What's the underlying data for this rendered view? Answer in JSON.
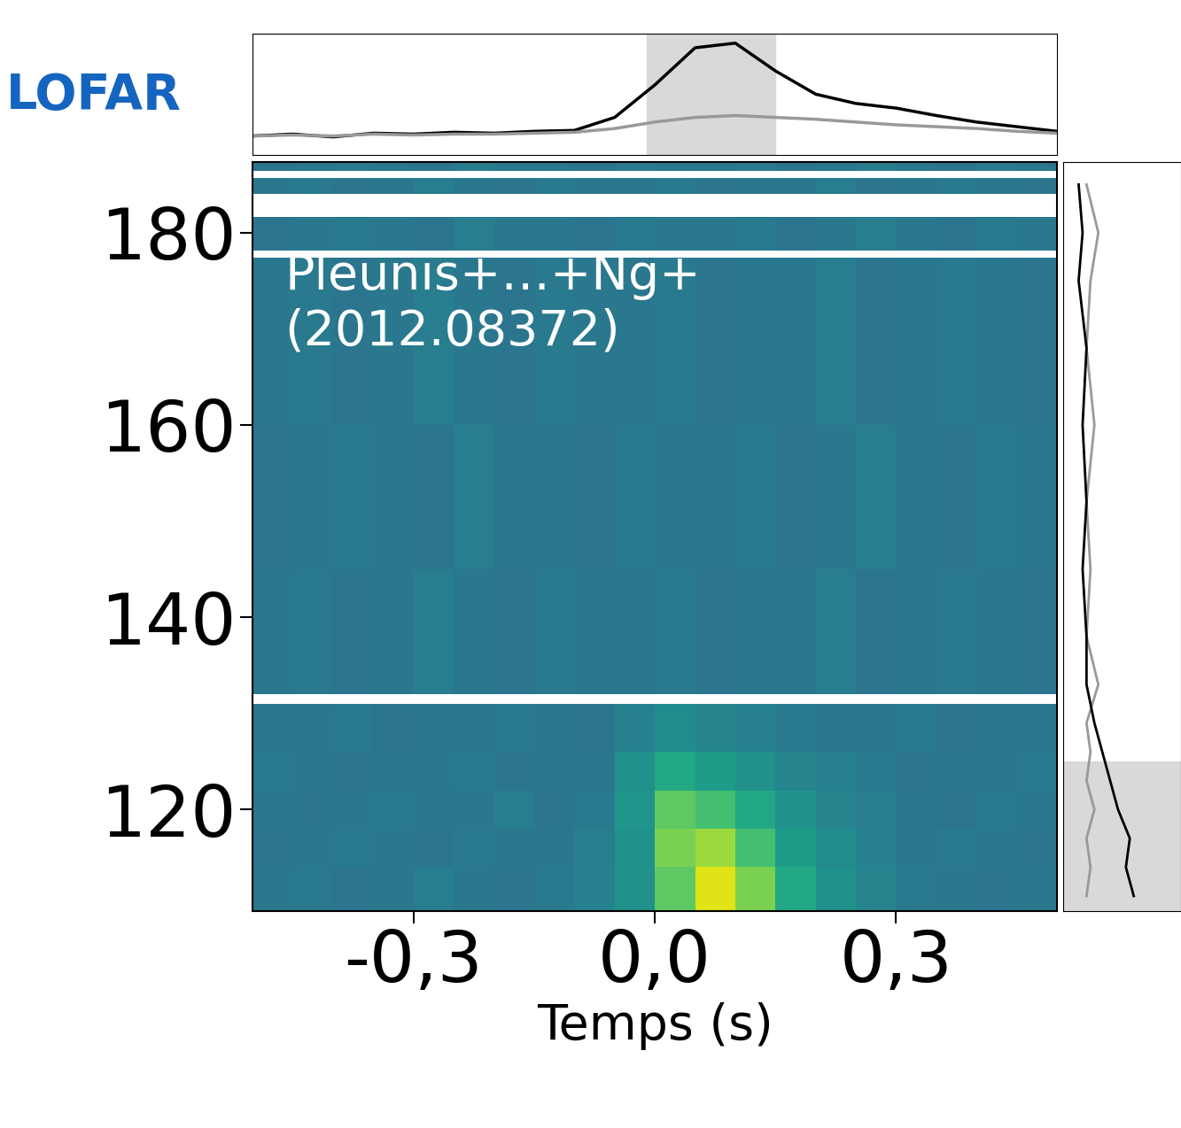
{
  "chart_data": [
    {
      "type": "heatmap",
      "title": "LOFAR",
      "x_label": "Temps (s)",
      "annotations": [
        "Pleunis+…+Ng+\n(2012.08372)"
      ],
      "xlim": [
        -0.5,
        0.5
      ],
      "ylim": [
        109.4,
        187.3
      ],
      "xticks": [
        {
          "value": -0.3,
          "label": "-0,3"
        },
        {
          "value": 0.0,
          "label": "0,0"
        },
        {
          "value": 0.3,
          "label": "0,3"
        }
      ],
      "yticks": [
        120,
        140,
        160,
        180
      ],
      "time_edges": [
        -0.5,
        -0.45,
        -0.4,
        -0.35,
        -0.3,
        -0.25,
        -0.2,
        -0.15,
        -0.1,
        -0.05,
        0.0,
        0.05,
        0.1,
        0.15,
        0.2,
        0.25,
        0.3,
        0.35,
        0.4,
        0.45,
        0.5
      ],
      "freq_edges": [
        109.4,
        114,
        118,
        122,
        126,
        131,
        132,
        145,
        160,
        177.4,
        178.1,
        181.6,
        184,
        185.7,
        186.4,
        187.3
      ],
      "zlim": [
        -0.1,
        0.9
      ],
      "cells": [
        [
          0.3,
          0.31,
          0.29,
          0.3,
          0.32,
          0.3,
          0.29,
          0.31,
          0.33,
          0.4,
          0.65,
          0.85,
          0.7,
          0.5,
          0.4,
          0.35,
          0.31,
          0.3,
          0.29,
          0.3
        ],
        [
          0.29,
          0.3,
          0.31,
          0.3,
          0.29,
          0.31,
          0.3,
          0.3,
          0.32,
          0.4,
          0.7,
          0.75,
          0.6,
          0.45,
          0.38,
          0.33,
          0.3,
          0.31,
          0.3,
          0.29
        ],
        [
          0.3,
          0.29,
          0.3,
          0.31,
          0.3,
          0.3,
          0.32,
          0.29,
          0.31,
          0.42,
          0.65,
          0.6,
          0.5,
          0.4,
          0.35,
          0.32,
          0.3,
          0.29,
          0.31,
          0.3
        ],
        [
          0.31,
          0.3,
          0.29,
          0.3,
          0.3,
          0.31,
          0.29,
          0.3,
          0.3,
          0.4,
          0.5,
          0.45,
          0.4,
          0.35,
          0.33,
          0.31,
          0.29,
          0.3,
          0.3,
          0.31
        ],
        [
          0.3,
          0.3,
          0.31,
          0.29,
          0.3,
          0.3,
          0.31,
          0.3,
          0.29,
          0.33,
          0.38,
          0.35,
          0.33,
          0.31,
          0.3,
          0.3,
          0.31,
          0.29,
          0.3,
          0.3
        ],
        [
          null,
          null,
          null,
          null,
          null,
          null,
          null,
          null,
          null,
          null,
          null,
          null,
          null,
          null,
          null,
          null,
          null,
          null,
          null,
          null
        ],
        [
          0.3,
          0.31,
          0.29,
          0.3,
          0.32,
          0.3,
          0.29,
          0.31,
          0.3,
          0.3,
          0.31,
          0.29,
          0.3,
          0.3,
          0.32,
          0.29,
          0.3,
          0.31,
          0.3,
          0.29
        ],
        [
          0.29,
          0.3,
          0.31,
          0.3,
          0.29,
          0.32,
          0.3,
          0.3,
          0.29,
          0.31,
          0.3,
          0.3,
          0.31,
          0.29,
          0.3,
          0.32,
          0.3,
          0.29,
          0.31,
          0.3
        ],
        [
          0.3,
          0.31,
          0.29,
          0.3,
          0.32,
          0.3,
          0.29,
          0.31,
          0.3,
          0.3,
          0.31,
          0.29,
          0.3,
          0.3,
          0.32,
          0.29,
          0.3,
          0.31,
          0.3,
          0.29
        ],
        [
          null,
          null,
          null,
          null,
          null,
          null,
          null,
          null,
          null,
          null,
          null,
          null,
          null,
          null,
          null,
          null,
          null,
          null,
          null,
          null
        ],
        [
          0.29,
          0.3,
          0.31,
          0.3,
          0.29,
          0.32,
          0.3,
          0.3,
          0.29,
          0.31,
          0.3,
          0.3,
          0.31,
          0.29,
          0.3,
          0.32,
          0.3,
          0.29,
          0.31,
          0.3
        ],
        [
          null,
          null,
          null,
          null,
          null,
          null,
          null,
          null,
          null,
          null,
          null,
          null,
          null,
          null,
          null,
          null,
          null,
          null,
          null,
          null
        ],
        [
          0.3,
          0.31,
          0.29,
          0.3,
          0.32,
          0.3,
          0.29,
          0.31,
          0.3,
          0.3,
          0.31,
          0.29,
          0.3,
          0.3,
          0.32,
          0.29,
          0.3,
          0.31,
          0.3,
          0.29
        ],
        [
          null,
          null,
          null,
          null,
          null,
          null,
          null,
          null,
          null,
          null,
          null,
          null,
          null,
          null,
          null,
          null,
          null,
          null,
          null,
          null
        ],
        [
          0.29,
          0.3,
          0.31,
          0.3,
          0.29,
          0.32,
          0.3,
          0.3,
          0.29,
          0.31,
          0.3,
          0.3,
          0.31,
          0.29,
          0.3,
          0.32,
          0.3,
          0.29,
          0.31,
          0.3
        ]
      ]
    },
    {
      "type": "line",
      "tick_labels": false,
      "x": [
        -0.5,
        -0.45,
        -0.4,
        -0.35,
        -0.3,
        -0.25,
        -0.2,
        -0.15,
        -0.1,
        -0.05,
        0.0,
        0.05,
        0.1,
        0.15,
        0.2,
        0.25,
        0.3,
        0.35,
        0.4,
        0.45,
        0.5
      ],
      "xlim": [
        -0.5,
        0.5
      ],
      "ylim": [
        -0.2,
        1.1
      ],
      "burst_window": [
        -0.01,
        0.15
      ],
      "series": [
        {
          "color": "#000000",
          "values": [
            0.0,
            0.02,
            -0.01,
            0.03,
            0.02,
            0.04,
            0.03,
            0.05,
            0.06,
            0.2,
            0.55,
            0.95,
            1.0,
            0.7,
            0.45,
            0.35,
            0.3,
            0.22,
            0.15,
            0.1,
            0.05
          ]
        },
        {
          "color": "#999999",
          "values": [
            0.0,
            0.01,
            0.0,
            0.02,
            0.01,
            0.02,
            0.02,
            0.03,
            0.04,
            0.08,
            0.15,
            0.2,
            0.22,
            0.2,
            0.18,
            0.15,
            0.12,
            0.1,
            0.08,
            0.05,
            0.03
          ]
        }
      ]
    },
    {
      "type": "line",
      "orientation": "horizontal",
      "tick_labels": false,
      "freq": [
        111,
        114,
        117,
        120,
        123,
        126,
        129,
        133,
        138,
        145,
        152,
        160,
        168,
        175,
        180,
        185
      ],
      "xlim": [
        0,
        1.5
      ],
      "ylim": [
        109.4,
        187.3
      ],
      "burst_band": [
        109.4,
        125
      ],
      "series": [
        {
          "color": "#000000",
          "values": [
            0.9,
            0.8,
            0.85,
            0.7,
            0.6,
            0.5,
            0.4,
            0.3,
            0.3,
            0.25,
            0.3,
            0.25,
            0.3,
            0.2,
            0.25,
            0.2
          ]
        },
        {
          "color": "#999999",
          "values": [
            0.3,
            0.35,
            0.3,
            0.4,
            0.3,
            0.35,
            0.3,
            0.45,
            0.3,
            0.35,
            0.3,
            0.4,
            0.3,
            0.35,
            0.45,
            0.3
          ]
        }
      ]
    }
  ]
}
